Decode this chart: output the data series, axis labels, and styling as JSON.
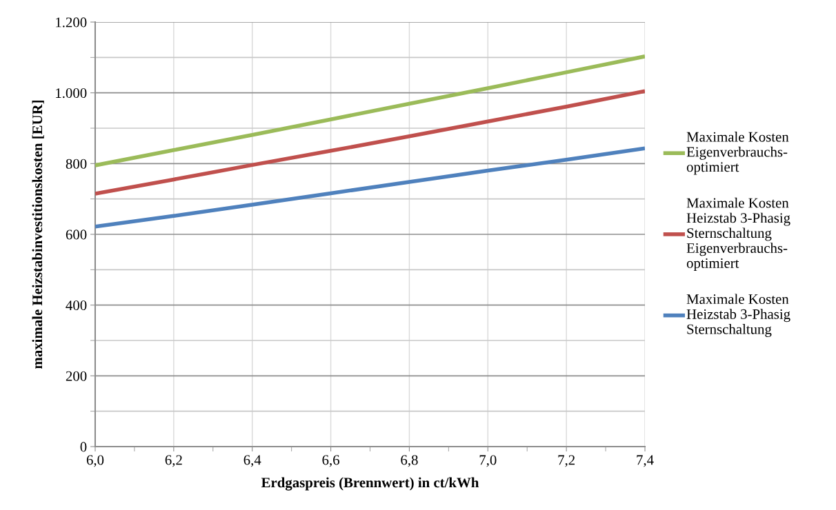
{
  "chart_data": {
    "type": "line",
    "xlabel": "Erdgaspreis (Brennwert) in ct/kWh",
    "ylabel": "maximale Heizstabinvestitionskosten [EUR]",
    "x": [
      6.0,
      6.2,
      6.4,
      6.6,
      6.8,
      7.0,
      7.2,
      7.4
    ],
    "series": [
      {
        "name": "Maximale Kosten\nEigenverbrauchs-\noptimiert",
        "color": "#9bbb59",
        "values": [
          795,
          838,
          881,
          925,
          969,
          1013,
          1058,
          1103
        ]
      },
      {
        "name": "Maximale Kosten\nHeizstab 3-Phasig\nSternschaltung\nEigenverbrauchs-\noptimiert",
        "color": "#c0504d",
        "values": [
          715,
          755,
          796,
          836,
          877,
          919,
          961,
          1005
        ]
      },
      {
        "name": "Maximale Kosten\nHeizstab 3-Phasig\nSternschaltung",
        "color": "#4f81bd",
        "values": [
          622,
          652,
          684,
          716,
          748,
          780,
          811,
          843
        ]
      }
    ],
    "xlim": [
      6.0,
      7.4
    ],
    "xticks": [
      {
        "value": 6.0,
        "label": "6,0"
      },
      {
        "value": 6.2,
        "label": "6,2"
      },
      {
        "value": 6.4,
        "label": "6,4"
      },
      {
        "value": 6.6,
        "label": "6,6"
      },
      {
        "value": 6.8,
        "label": "6,8"
      },
      {
        "value": 7.0,
        "label": "7,0"
      },
      {
        "value": 7.2,
        "label": "7,2"
      },
      {
        "value": 7.4,
        "label": "7,4"
      }
    ],
    "ylim": [
      0,
      1200
    ],
    "yticks": [
      0,
      200,
      400,
      600,
      800,
      {
        "value": 1000,
        "label": "1.000"
      },
      {
        "value": 1200,
        "label": "1.200"
      }
    ],
    "grid": true,
    "legend": "right",
    "marker": "none",
    "line_style": "solid"
  }
}
